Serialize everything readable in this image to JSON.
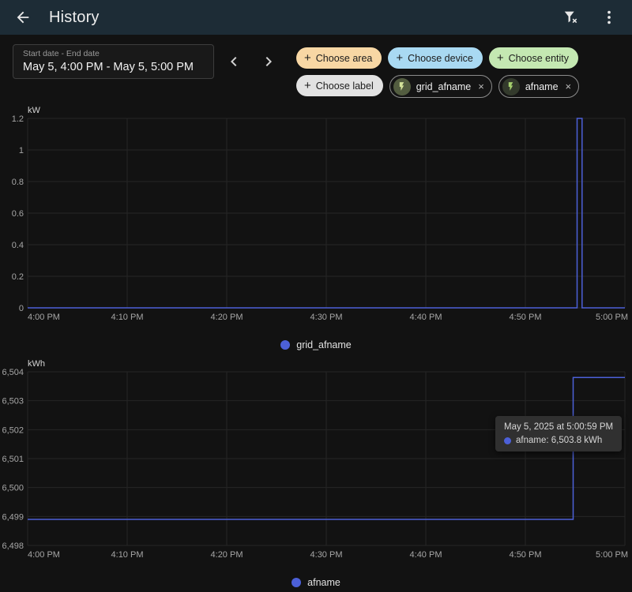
{
  "header": {
    "title": "History"
  },
  "icons": {
    "back": "arrow-left",
    "filter": "filter-remove",
    "menu": "dots-vertical",
    "prev": "chevron-left",
    "next": "chevron-right",
    "plus": "+",
    "close": "×",
    "entity": "lightning-bolt"
  },
  "toolbar": {
    "date_range": {
      "label": "Start date - End date",
      "value": "May 5, 4:00 PM - May 5, 5:00 PM"
    },
    "add_chips": [
      {
        "label": "Choose area",
        "bg": "#f8d7a4"
      },
      {
        "label": "Choose device",
        "bg": "#a9d9f2"
      },
      {
        "label": "Choose entity",
        "bg": "#c4e8b2"
      },
      {
        "label": "Choose label",
        "bg": "#e2e2e2"
      }
    ],
    "entity_chips": [
      {
        "label": "grid_afname",
        "icon_bg": "#535d40",
        "icon_color": "#d3e29a"
      },
      {
        "label": "afname",
        "icon_bg": "#333a2c",
        "icon_color": "#a4cf6d"
      }
    ]
  },
  "tooltip": {
    "title": "May 5, 2025 at 5:00:59 PM",
    "value": "afname: 6,503.8 kWh"
  },
  "chart_data": [
    {
      "type": "line",
      "unit": "kW",
      "xlim": [
        0,
        60
      ],
      "ylim": [
        0,
        1.2
      ],
      "x_tick_minutes": [
        0,
        10,
        20,
        30,
        40,
        50,
        60
      ],
      "x_tick_labels": [
        "4:00 PM",
        "4:10 PM",
        "4:20 PM",
        "4:30 PM",
        "4:40 PM",
        "4:50 PM",
        "5:00 PM"
      ],
      "y_tick_values": [
        0,
        0.2,
        0.4,
        0.6,
        0.8,
        1,
        1.2
      ],
      "y_tick_labels": [
        "0",
        "0.2",
        "0.4",
        "0.6",
        "0.8",
        "1",
        "1.2"
      ],
      "grid": true,
      "legend_position": "bottom",
      "series": [
        {
          "name": "grid_afname",
          "color": "#4c60d8",
          "points": [
            [
              0,
              0
            ],
            [
              55.2,
              0
            ],
            [
              55.2,
              1.2
            ],
            [
              55.7,
              1.2
            ],
            [
              55.7,
              0
            ],
            [
              60,
              0
            ]
          ]
        }
      ]
    },
    {
      "type": "line",
      "unit": "kWh",
      "xlim": [
        0,
        60
      ],
      "ylim": [
        6498,
        6504
      ],
      "x_tick_minutes": [
        0,
        10,
        20,
        30,
        40,
        50,
        60
      ],
      "x_tick_labels": [
        "4:00 PM",
        "4:10 PM",
        "4:20 PM",
        "4:30 PM",
        "4:40 PM",
        "4:50 PM",
        "5:00 PM"
      ],
      "y_tick_values": [
        6498,
        6499,
        6500,
        6501,
        6502,
        6503,
        6504
      ],
      "y_tick_labels": [
        "6,498",
        "6,499",
        "6,500",
        "6,501",
        "6,502",
        "6,503",
        "6,504"
      ],
      "grid": true,
      "legend_position": "bottom",
      "series": [
        {
          "name": "afname",
          "color": "#4c60d8",
          "points": [
            [
              0,
              6498.9
            ],
            [
              54.8,
              6498.9
            ],
            [
              54.8,
              6503.8
            ],
            [
              60,
              6503.8
            ]
          ]
        }
      ]
    }
  ]
}
